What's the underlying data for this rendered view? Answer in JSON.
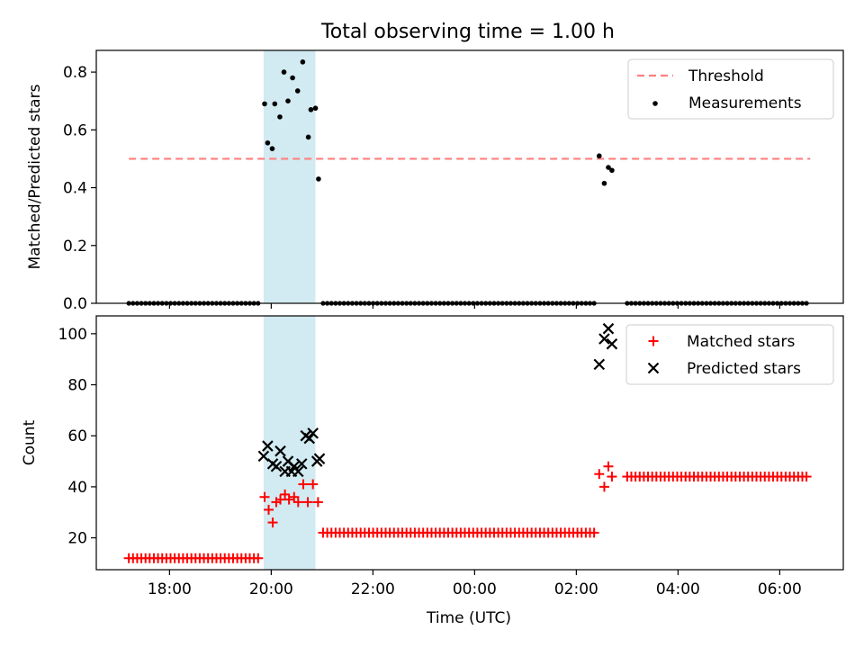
{
  "figure": {
    "title": "Total observing time = 1.00 h",
    "xlabel": "Time (UTC)",
    "x_ticks": [
      {
        "h": 18,
        "label": "18:00"
      },
      {
        "h": 20,
        "label": "20:00"
      },
      {
        "h": 22,
        "label": "22:00"
      },
      {
        "h": 24,
        "label": "00:00"
      },
      {
        "h": 26,
        "label": "02:00"
      },
      {
        "h": 28,
        "label": "04:00"
      },
      {
        "h": 30,
        "label": "06:00"
      }
    ],
    "x_range_hours": [
      16.56,
      31.25
    ],
    "highlight_span_hours": [
      19.85,
      20.87
    ],
    "highlight_color": "#add8e6",
    "colors": {
      "threshold": "#ff7f7f",
      "measurement": "#000000",
      "matched": "#ff0000",
      "predicted": "#000000"
    }
  },
  "chart_data": [
    {
      "type": "scatter",
      "panel": "top",
      "title": "Total observing time = 1.00 h",
      "xlabel": "",
      "ylabel": "Matched/Predicted stars",
      "ylim": [
        0,
        0.875
      ],
      "y_ticks": [
        0,
        0.2,
        0.4,
        0.6,
        0.8
      ],
      "y_tick_labels": [
        "0.0",
        "0.2",
        "0.4",
        "0.6",
        "0.8"
      ],
      "grid": false,
      "legend": {
        "position": "top-right",
        "entries": [
          "Threshold",
          "Measurements"
        ]
      },
      "threshold": {
        "name": "Threshold",
        "style": "dashed",
        "x": [
          17.2,
          30.6
        ],
        "y": 0.5
      },
      "zero_runs": [
        {
          "from": 17.2,
          "to": 19.8
        },
        {
          "from": 21.02,
          "to": 26.38
        },
        {
          "from": 27.0,
          "to": 30.6
        }
      ],
      "series": [
        {
          "name": "Measurements",
          "x": [
            19.87,
            19.93,
            20.02,
            20.07,
            20.17,
            20.25,
            20.33,
            20.42,
            20.52,
            20.62,
            20.73,
            20.78,
            20.87,
            20.93,
            26.45,
            26.55,
            26.63,
            26.7
          ],
          "y": [
            0.69,
            0.555,
            0.535,
            0.69,
            0.645,
            0.8,
            0.7,
            0.78,
            0.735,
            0.835,
            0.575,
            0.67,
            0.675,
            0.43,
            0.51,
            0.415,
            0.47,
            0.46
          ]
        }
      ]
    },
    {
      "type": "scatter",
      "panel": "bottom",
      "xlabel": "Time (UTC)",
      "ylabel": "Count",
      "ylim": [
        7.5,
        107
      ],
      "y_ticks": [
        20,
        40,
        60,
        80,
        100
      ],
      "y_tick_labels": [
        "20",
        "40",
        "60",
        "80",
        "100"
      ],
      "grid": false,
      "legend": {
        "position": "top-right",
        "entries": [
          "Matched stars",
          "Predicted stars"
        ]
      },
      "matched_runs": [
        {
          "from": 17.2,
          "to": 19.8,
          "y": 12
        },
        {
          "from": 21.02,
          "to": 26.38,
          "y": 22
        },
        {
          "from": 27.0,
          "to": 30.6,
          "y": 44
        }
      ],
      "series": [
        {
          "name": "Matched stars",
          "x": [
            19.87,
            19.95,
            20.03,
            20.1,
            20.18,
            20.27,
            20.35,
            20.45,
            20.53,
            20.63,
            20.72,
            20.82,
            20.92,
            26.45,
            26.55,
            26.63,
            26.7
          ],
          "y": [
            36,
            31,
            26,
            34,
            35,
            37,
            35,
            36,
            34,
            41,
            34,
            41,
            34,
            45,
            40,
            48,
            44
          ]
        },
        {
          "name": "Predicted stars",
          "x": [
            19.85,
            19.93,
            20.03,
            20.1,
            20.18,
            20.27,
            20.33,
            20.4,
            20.45,
            20.53,
            20.6,
            20.68,
            20.75,
            20.82,
            20.9,
            20.95,
            26.45,
            26.55,
            26.63,
            26.7
          ],
          "y": [
            52,
            56,
            49,
            48,
            54,
            46,
            50,
            46,
            48,
            46,
            49,
            60,
            59,
            61,
            50,
            51,
            88,
            98,
            102,
            96
          ]
        }
      ]
    }
  ]
}
